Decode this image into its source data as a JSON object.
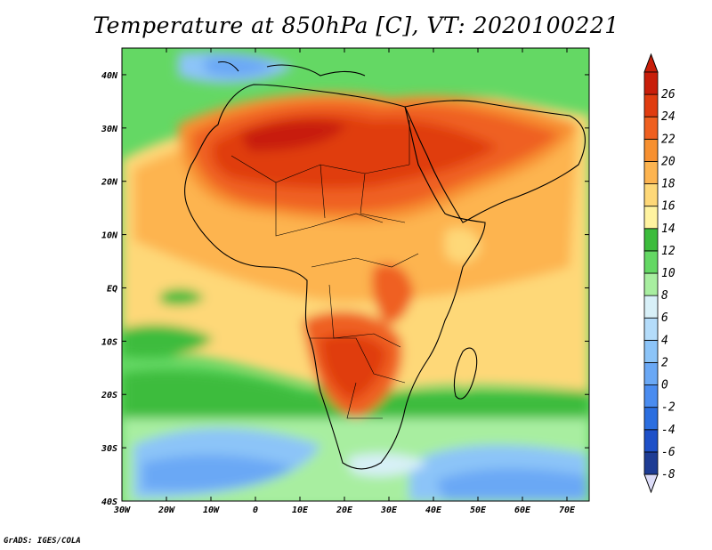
{
  "title": "Temperature at 850hPa [C], VT: 2020100221",
  "credit": "GrADS: IGES/COLA",
  "map": {
    "lon_range": [
      -30,
      75
    ],
    "lat_range": [
      -40,
      45
    ],
    "x_ticks": [
      {
        "lon": -30,
        "label": "30W"
      },
      {
        "lon": -20,
        "label": "20W"
      },
      {
        "lon": -10,
        "label": "10W"
      },
      {
        "lon": 0,
        "label": "0"
      },
      {
        "lon": 10,
        "label": "10E"
      },
      {
        "lon": 20,
        "label": "20E"
      },
      {
        "lon": 30,
        "label": "30E"
      },
      {
        "lon": 40,
        "label": "40E"
      },
      {
        "lon": 50,
        "label": "50E"
      },
      {
        "lon": 60,
        "label": "60E"
      },
      {
        "lon": 70,
        "label": "70E"
      }
    ],
    "y_ticks": [
      {
        "lat": 40,
        "label": "40N"
      },
      {
        "lat": 30,
        "label": "30N"
      },
      {
        "lat": 20,
        "label": "20N"
      },
      {
        "lat": 10,
        "label": "10N"
      },
      {
        "lat": 0,
        "label": "EQ"
      },
      {
        "lat": -10,
        "label": "10S"
      },
      {
        "lat": -20,
        "label": "20S"
      },
      {
        "lat": -30,
        "label": "30S"
      },
      {
        "lat": -40,
        "label": "40S"
      }
    ]
  },
  "colorbar": {
    "levels": [
      "-8",
      "-6",
      "-4",
      "-2",
      "0",
      "2",
      "4",
      "6",
      "8",
      "10",
      "12",
      "14",
      "16",
      "18",
      "20",
      "22",
      "24",
      "26"
    ],
    "colors": [
      "#1e3c94",
      "#1e50c8",
      "#2b6ee0",
      "#4a8cf0",
      "#6aa8f5",
      "#8cc4f8",
      "#b4dcfa",
      "#d8f0f8",
      "#a8eea0",
      "#64d864",
      "#3cbc3c",
      "#fff3a0",
      "#fed878",
      "#fdb450",
      "#f79030",
      "#ef6020",
      "#e03c10",
      "#c81e0a"
    ],
    "low_arrow_color": "#dcdcf8",
    "high_arrow_color": "#c81e0a"
  }
}
